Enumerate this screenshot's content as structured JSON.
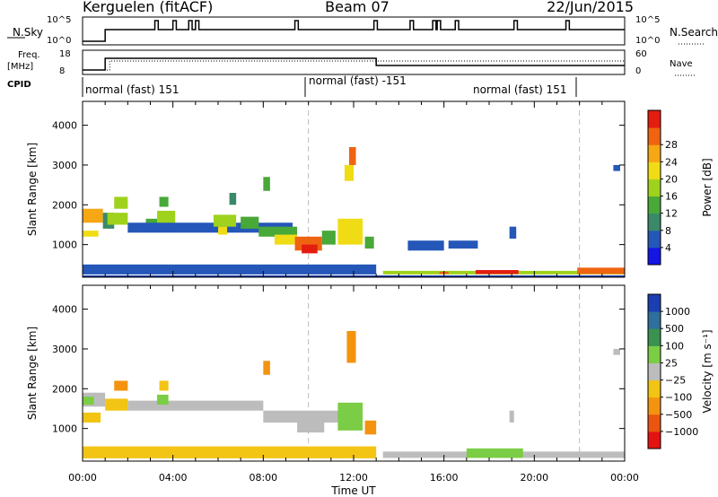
{
  "header": {
    "station": "Kerguelen (fitACF)",
    "beam": "Beam 07",
    "date": "22/Jun/2015"
  },
  "status": {
    "nsky_label": "N.Sky",
    "nsearch_label": "N.Search",
    "freq_label": "Freq.",
    "freq_unit": "[MHz]",
    "nave_label": "Nave",
    "cpid_label": "CPID",
    "nsky_ticks": [
      "10^5",
      "10^0"
    ],
    "nsearch_ticks": [
      "10^5",
      "10^0"
    ],
    "freq_ticks": [
      "18",
      "8"
    ],
    "nave_ticks": [
      "60",
      "0"
    ],
    "cpid_segments": [
      "normal (fast) 151",
      "normal (fast) -151",
      "normal (fast) 151"
    ]
  },
  "axis": {
    "x_label": "Time UT",
    "y_label": "Slant Range [km]"
  },
  "chart_data": [
    {
      "type": "heatmap",
      "panel": "power",
      "xlabel": "Time UT",
      "ylabel": "Slant Range [km]",
      "x_ticks": [
        "00:00",
        "04:00",
        "08:00",
        "12:00",
        "16:00",
        "20:00",
        "00:00"
      ],
      "xlim_hours": [
        0,
        24
      ],
      "y_ticks": [
        1000,
        2000,
        3000,
        4000
      ],
      "ylim": [
        180,
        4600
      ],
      "colorbar": {
        "label": "Power [dB]",
        "ticks": [
          4,
          8,
          12,
          16,
          20,
          24,
          28
        ],
        "colors": [
          "#1515e6",
          "#2457b8",
          "#3a8a6a",
          "#48a838",
          "#9fd21c",
          "#f0dc15",
          "#f7a614",
          "#ee6410",
          "#e51d10"
        ]
      },
      "regions": [
        {
          "t0": 0.0,
          "t1": 0.9,
          "r0": 1550,
          "r1": 1900,
          "level": 6
        },
        {
          "t0": 0.0,
          "t1": 0.7,
          "r0": 1200,
          "r1": 1350,
          "level": 5
        },
        {
          "t0": 0.9,
          "t1": 1.4,
          "r0": 1400,
          "r1": 1800,
          "level": 2
        },
        {
          "t0": 1.1,
          "t1": 2.0,
          "r0": 1500,
          "r1": 1800,
          "level": 4
        },
        {
          "t0": 1.4,
          "t1": 2.0,
          "r0": 1900,
          "r1": 2200,
          "level": 4
        },
        {
          "t0": 2.8,
          "t1": 3.3,
          "r0": 1400,
          "r1": 1650,
          "level": 3
        },
        {
          "t0": 3.3,
          "t1": 4.1,
          "r0": 1500,
          "r1": 1850,
          "level": 4
        },
        {
          "t0": 3.4,
          "t1": 3.8,
          "r0": 1950,
          "r1": 2200,
          "level": 3
        },
        {
          "t0": 2.0,
          "t1": 9.3,
          "r0": 1300,
          "r1": 1550,
          "level": 1
        },
        {
          "t0": 5.8,
          "t1": 6.8,
          "r0": 1450,
          "r1": 1750,
          "level": 4
        },
        {
          "t0": 6.0,
          "t1": 6.4,
          "r0": 1250,
          "r1": 1450,
          "level": 5
        },
        {
          "t0": 7.0,
          "t1": 7.8,
          "r0": 1400,
          "r1": 1700,
          "level": 3
        },
        {
          "t0": 7.8,
          "t1": 9.5,
          "r0": 1200,
          "r1": 1450,
          "level": 3
        },
        {
          "t0": 8.5,
          "t1": 9.5,
          "r0": 1000,
          "r1": 1250,
          "level": 5
        },
        {
          "t0": 9.4,
          "t1": 10.6,
          "r0": 850,
          "r1": 1200,
          "level": 7
        },
        {
          "t0": 9.7,
          "t1": 10.4,
          "r0": 780,
          "r1": 1000,
          "level": 8
        },
        {
          "t0": 10.6,
          "t1": 11.2,
          "r0": 1000,
          "r1": 1350,
          "level": 3
        },
        {
          "t0": 11.3,
          "t1": 12.4,
          "r0": 1000,
          "r1": 1650,
          "level": 5
        },
        {
          "t0": 11.8,
          "t1": 12.1,
          "r0": 3000,
          "r1": 3450,
          "level": 7
        },
        {
          "t0": 11.6,
          "t1": 12.0,
          "r0": 2600,
          "r1": 3000,
          "level": 5
        },
        {
          "t0": 12.5,
          "t1": 12.9,
          "r0": 900,
          "r1": 1200,
          "level": 3
        },
        {
          "t0": 8.0,
          "t1": 8.3,
          "r0": 2350,
          "r1": 2700,
          "level": 3
        },
        {
          "t0": 6.5,
          "t1": 6.8,
          "r0": 2000,
          "r1": 2300,
          "level": 2
        },
        {
          "t0": 14.4,
          "t1": 16.0,
          "r0": 850,
          "r1": 1100,
          "level": 1
        },
        {
          "t0": 16.2,
          "t1": 17.5,
          "r0": 900,
          "r1": 1100,
          "level": 1
        },
        {
          "t0": 18.9,
          "t1": 19.2,
          "r0": 1150,
          "r1": 1450,
          "level": 1
        },
        {
          "t0": 23.5,
          "t1": 23.8,
          "r0": 2850,
          "r1": 3000,
          "level": 1
        },
        {
          "t0": 0.0,
          "t1": 13.0,
          "r0": 250,
          "r1": 500,
          "level": 1
        },
        {
          "t0": 13.3,
          "t1": 24.0,
          "r0": 250,
          "r1": 340,
          "level": 4
        },
        {
          "t0": 17.4,
          "t1": 19.3,
          "r0": 260,
          "r1": 360,
          "level": 8
        },
        {
          "t0": 21.9,
          "t1": 24.0,
          "r0": 260,
          "r1": 420,
          "level": 7
        },
        {
          "t0": 15.8,
          "t1": 16.2,
          "r0": 260,
          "r1": 320,
          "level": 7
        }
      ]
    },
    {
      "type": "heatmap",
      "panel": "velocity",
      "xlabel": "Time UT",
      "ylabel": "Slant Range [km]",
      "x_ticks": [
        "00:00",
        "04:00",
        "08:00",
        "12:00",
        "16:00",
        "20:00",
        "00:00"
      ],
      "xlim_hours": [
        0,
        24
      ],
      "y_ticks": [
        1000,
        2000,
        3000,
        4000
      ],
      "ylim": [
        180,
        4600
      ],
      "colorbar": {
        "label": "Velocity [m s⁻¹]",
        "ticks": [
          "1000",
          "500",
          "100",
          "25",
          "−25",
          "−100",
          "−500",
          "−1000"
        ],
        "colors": [
          "#1b3fb2",
          "#2e6f9c",
          "#3a9150",
          "#7acd44",
          "#bcbcbc",
          "#f2c414",
          "#f3930f",
          "#ea5510",
          "#e51212"
        ]
      },
      "regions": [
        {
          "t0": 0.0,
          "t1": 1.0,
          "r0": 1550,
          "r1": 1900,
          "level": 4
        },
        {
          "t0": 0.0,
          "t1": 0.5,
          "r0": 1600,
          "r1": 1800,
          "level": 3
        },
        {
          "t0": 0.0,
          "t1": 0.8,
          "r0": 1150,
          "r1": 1400,
          "level": 5
        },
        {
          "t0": 1.0,
          "t1": 2.0,
          "r0": 1450,
          "r1": 1750,
          "level": 5
        },
        {
          "t0": 1.4,
          "t1": 2.0,
          "r0": 1950,
          "r1": 2200,
          "level": 6
        },
        {
          "t0": 2.0,
          "t1": 8.0,
          "r0": 1450,
          "r1": 1700,
          "level": 4
        },
        {
          "t0": 3.3,
          "t1": 3.8,
          "r0": 1600,
          "r1": 1850,
          "level": 3
        },
        {
          "t0": 3.4,
          "t1": 3.8,
          "r0": 1950,
          "r1": 2200,
          "level": 5
        },
        {
          "t0": 8.0,
          "t1": 11.4,
          "r0": 1150,
          "r1": 1450,
          "level": 4
        },
        {
          "t0": 9.5,
          "t1": 10.7,
          "r0": 900,
          "r1": 1200,
          "level": 4
        },
        {
          "t0": 11.3,
          "t1": 12.4,
          "r0": 950,
          "r1": 1650,
          "level": 3
        },
        {
          "t0": 11.7,
          "t1": 12.1,
          "r0": 2650,
          "r1": 3450,
          "level": 6
        },
        {
          "t0": 8.0,
          "t1": 8.3,
          "r0": 2350,
          "r1": 2700,
          "level": 6
        },
        {
          "t0": 12.5,
          "t1": 13.0,
          "r0": 850,
          "r1": 1200,
          "level": 6
        },
        {
          "t0": 0.0,
          "t1": 13.0,
          "r0": 250,
          "r1": 550,
          "level": 5
        },
        {
          "t0": 13.3,
          "t1": 24.0,
          "r0": 260,
          "r1": 420,
          "level": 4
        },
        {
          "t0": 17.0,
          "t1": 19.5,
          "r0": 260,
          "r1": 500,
          "level": 3
        },
        {
          "t0": 18.9,
          "t1": 19.1,
          "r0": 1150,
          "r1": 1450,
          "level": 4
        },
        {
          "t0": 23.5,
          "t1": 23.8,
          "r0": 2850,
          "r1": 3000,
          "level": 4
        }
      ]
    }
  ],
  "dashed_times_hours": [
    10.0,
    22.0
  ]
}
